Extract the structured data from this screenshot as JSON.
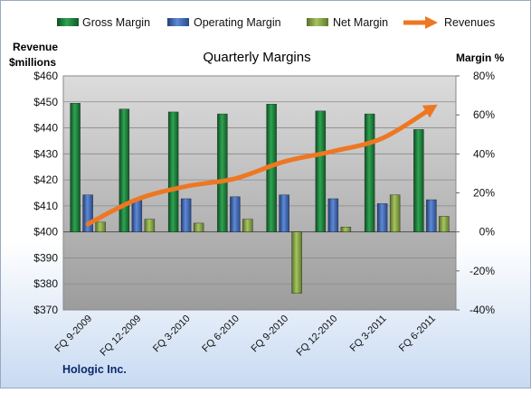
{
  "chart_data": {
    "type": "bar",
    "title": "Quarterly Margins",
    "company": "Hologic Inc.",
    "left_axis_label_line1": "Revenue",
    "left_axis_label_line2": "$millions",
    "right_axis_label": "Margin %",
    "categories": [
      "FQ 9-2009",
      "FQ 12-2009",
      "FQ 3-2010",
      "FQ 6-2010",
      "FQ 9-2010",
      "FQ 12-2010",
      "FQ 3-2011",
      "FQ 6-2011"
    ],
    "left_axis": {
      "min": 370,
      "max": 460,
      "ticks": [
        "$370",
        "$380",
        "$390",
        "$400",
        "$410",
        "$420",
        "$430",
        "$440",
        "$450",
        "$460"
      ]
    },
    "right_axis": {
      "min": -40,
      "max": 80,
      "ticks": [
        "-40%",
        "-20%",
        "0%",
        "20%",
        "40%",
        "60%",
        "80%"
      ]
    },
    "series": [
      {
        "name": "Gross Margin",
        "type": "bar",
        "axis": "right",
        "color": "#1e7a3a",
        "values": [
          66,
          63,
          61.5,
          60.5,
          65.5,
          62,
          60.5,
          52.5
        ]
      },
      {
        "name": "Operating Margin",
        "type": "bar",
        "axis": "right",
        "color": "#3a68b8",
        "values": [
          19,
          16.5,
          17,
          18,
          19,
          17,
          14.5,
          16.5
        ]
      },
      {
        "name": "Net Margin",
        "type": "bar",
        "axis": "right",
        "color": "#8aa840",
        "values": [
          5,
          6.5,
          4.5,
          6.5,
          -31.5,
          2.5,
          19,
          8
        ]
      },
      {
        "name": "Revenues",
        "type": "line",
        "axis": "left",
        "color": "#ee7722",
        "values": [
          403,
          412.5,
          417.5,
          420.5,
          427,
          431,
          436,
          447.5
        ]
      }
    ],
    "grid": true,
    "legend_position": "top"
  }
}
